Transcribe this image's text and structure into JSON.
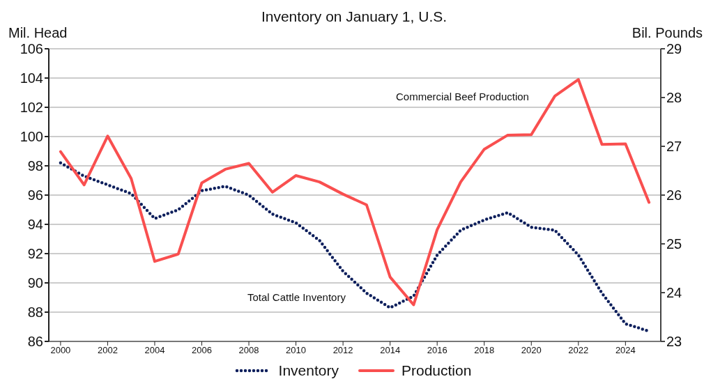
{
  "chart_data": {
    "type": "line",
    "title": "Inventory on January 1, U.S.",
    "ylabel": "Mil. Head",
    "y2label": "Bil. Pounds",
    "x": [
      2000,
      2001,
      2002,
      2003,
      2004,
      2005,
      2006,
      2007,
      2008,
      2009,
      2010,
      2011,
      2012,
      2013,
      2014,
      2015,
      2016,
      2017,
      2018,
      2019,
      2020,
      2021,
      2022,
      2023,
      2024,
      2025
    ],
    "series": [
      {
        "name": "Inventory",
        "color": "#0d1f5c",
        "line_style": "dotted",
        "values": [
          98.2,
          97.3,
          96.7,
          96.1,
          94.4,
          95.0,
          96.3,
          96.6,
          96.0,
          94.7,
          94.1,
          92.9,
          90.8,
          89.3,
          88.3,
          89.1,
          91.9,
          93.6,
          94.3,
          94.8,
          93.8,
          93.6,
          91.9,
          89.3,
          87.2,
          86.7
        ]
      },
      {
        "name": "Production",
        "color": "#f94f4f",
        "line_style": "solid",
        "axis": "y2",
        "values": [
          26.89,
          26.21,
          27.21,
          26.34,
          24.64,
          24.79,
          26.25,
          26.53,
          26.65,
          26.06,
          26.4,
          26.27,
          26.02,
          25.8,
          24.32,
          23.75,
          25.29,
          26.27,
          26.94,
          27.23,
          27.24,
          28.03,
          28.37,
          27.04,
          27.05,
          25.85
        ]
      }
    ],
    "xlim": [
      1999.5,
      2025.5
    ],
    "xticks": [
      2000,
      2002,
      2004,
      2006,
      2008,
      2010,
      2012,
      2014,
      2016,
      2018,
      2020,
      2022,
      2024
    ],
    "ylim": [
      86,
      106
    ],
    "yticks": [
      86,
      88,
      90,
      92,
      94,
      96,
      98,
      100,
      102,
      104,
      106
    ],
    "y2lim": [
      23,
      29
    ],
    "y2ticks": [
      23,
      24,
      25,
      26,
      27,
      28,
      29
    ],
    "grid": "y",
    "legend": "bottom",
    "marker": "none",
    "annotations": [
      "Commercial Beef Production",
      "Total Cattle Inventory"
    ]
  }
}
